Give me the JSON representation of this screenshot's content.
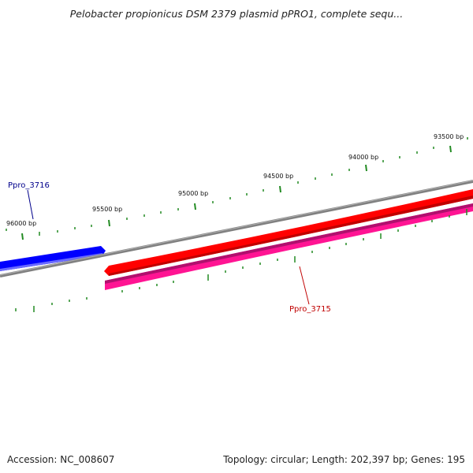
{
  "title": "Pelobacter propionicus DSM 2379 plasmid pPRO1, complete sequ...",
  "footer": {
    "accession_label": "Accession:",
    "accession": "NC_008607",
    "topology_label": "Topology:",
    "topology": "circular;",
    "length_label": "Length:",
    "length": "202,397 bp;",
    "genes_label": "Genes:",
    "genes": "195"
  },
  "map": {
    "tick_labels": [
      "96000 bp",
      "95500 bp",
      "95000 bp",
      "94500 bp",
      "94000 bp",
      "93500 bp"
    ],
    "genes": [
      {
        "name": "Ppro_3716",
        "strand": "forward",
        "color": "#0000ff",
        "label_color": "#00008b"
      },
      {
        "name": "Ppro_3715",
        "strand": "reverse",
        "color": "#ff0000",
        "label_color": "#c00000"
      }
    ],
    "track_colors": {
      "backbone": "#808080",
      "reverse_cds": "#ff1493",
      "ticks": "#228b22"
    }
  }
}
